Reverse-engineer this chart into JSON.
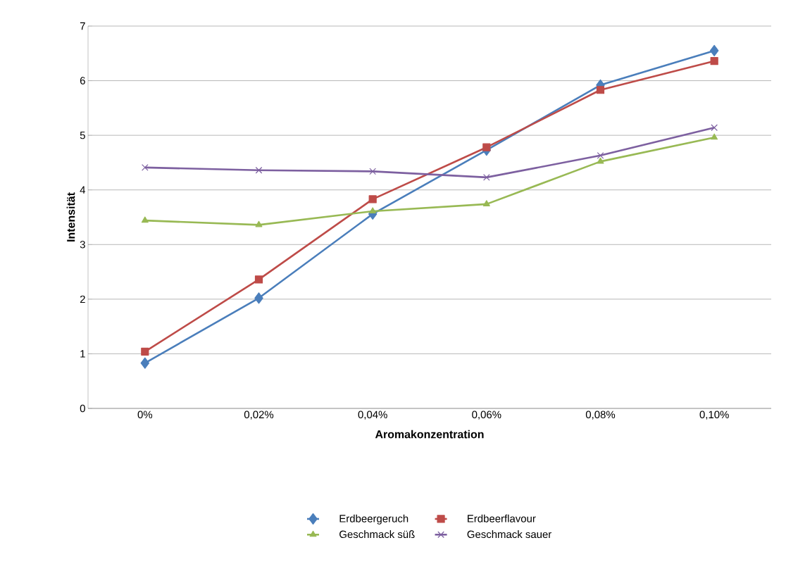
{
  "chart_data": {
    "type": "line",
    "xlabel": "Aromakonzentration",
    "ylabel": "Intensität",
    "categories": [
      "0%",
      "0,02%",
      "0,04%",
      "0,06%",
      "0,08%",
      "0,10%"
    ],
    "series": [
      {
        "name": "Erdbeergeruch",
        "color": "#4a7ebb",
        "marker": "diamond",
        "values": [
          0.83,
          2.02,
          3.56,
          4.73,
          5.92,
          6.55
        ]
      },
      {
        "name": "Erdbeerflavour",
        "color": "#be4b48",
        "marker": "square",
        "values": [
          1.04,
          2.36,
          3.83,
          4.78,
          5.83,
          6.36
        ]
      },
      {
        "name": "Geschmack süß",
        "color": "#98b954",
        "marker": "triangle",
        "values": [
          3.44,
          3.36,
          3.61,
          3.74,
          4.52,
          4.96
        ]
      },
      {
        "name": "Geschmack sauer",
        "color": "#7d60a0",
        "marker": "cross",
        "values": [
          4.41,
          4.36,
          4.34,
          4.23,
          4.63,
          5.14
        ]
      }
    ],
    "ylim": [
      0,
      7
    ],
    "yticks": [
      0,
      1,
      2,
      3,
      4,
      5,
      6,
      7
    ],
    "grid": "y",
    "legend": "bottom",
    "line_style": "solid"
  }
}
